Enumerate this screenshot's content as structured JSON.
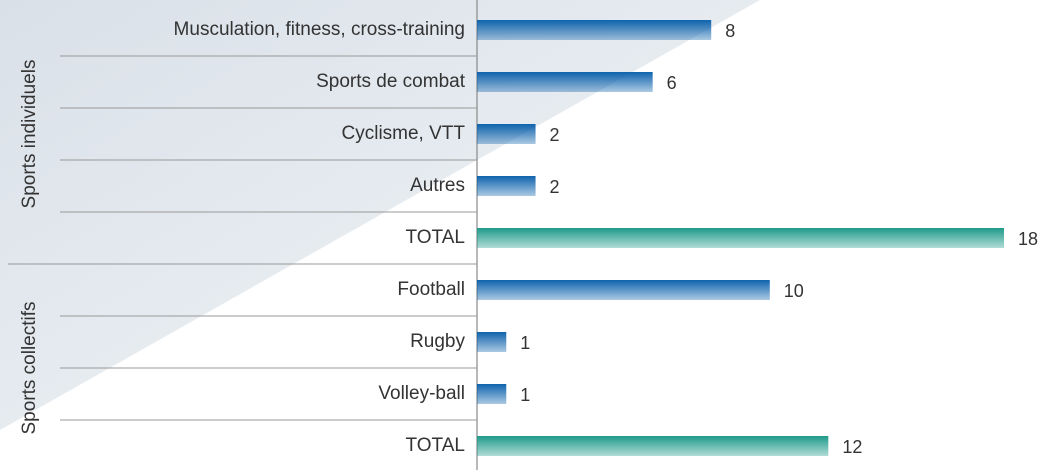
{
  "chart_data": {
    "type": "bar",
    "groups": [
      {
        "name": "Sports individuels",
        "categories": [
          "Musculation, fitness, cross-training",
          "Sports de combat",
          "Cyclisme, VTT",
          "Autres",
          "TOTAL"
        ],
        "values": [
          8,
          6,
          2,
          2,
          18
        ],
        "colors": [
          "#0f63ad",
          "#0f63ad",
          "#0f63ad",
          "#0f63ad",
          "#1f9a8a"
        ]
      },
      {
        "name": "Sports collectifs",
        "categories": [
          "Football",
          "Rugby",
          "Volley-ball",
          "TOTAL"
        ],
        "values": [
          10,
          1,
          1,
          12
        ],
        "colors": [
          "#0f63ad",
          "#0f63ad",
          "#0f63ad",
          "#1f9a8a"
        ]
      }
    ],
    "xlim": [
      0,
      18
    ]
  }
}
